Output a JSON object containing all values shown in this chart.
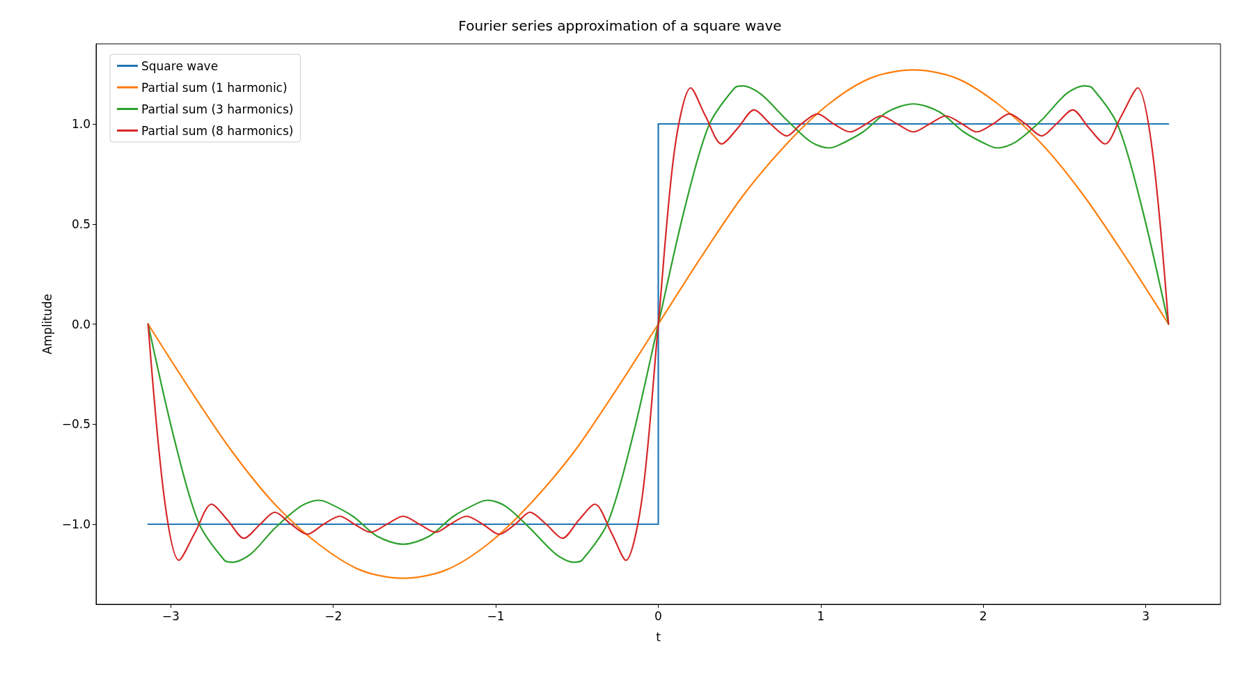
{
  "chart_data": {
    "type": "line",
    "title": "Fourier series approximation of a square wave",
    "xlabel": "t",
    "ylabel": "Amplitude",
    "xlim": [
      -3.46,
      3.46
    ],
    "xticks": [
      {
        "value": -3,
        "label": "−3"
      },
      {
        "value": -2,
        "label": "−2"
      },
      {
        "value": -1,
        "label": "−1"
      },
      0,
      1,
      2,
      3
    ],
    "ylim": [
      -1.4,
      1.4
    ],
    "yticks": [
      {
        "value": -1,
        "label": "−1.0"
      },
      {
        "value": -0.5,
        "label": "−0.5"
      },
      {
        "value": 0,
        "label": "0.0"
      },
      {
        "value": 0.5,
        "label": "0.5"
      },
      {
        "value": 1,
        "label": "1.0"
      }
    ],
    "grid": false,
    "legend": "top left",
    "marker": "none",
    "line_style": "solid",
    "series": [
      {
        "name": "Square wave",
        "color": "#1f77b4",
        "x": [
          -3.14,
          0,
          0,
          3.14
        ],
        "values": [
          -1,
          -1,
          1,
          1
        ]
      },
      {
        "name": "Partial sum (1 harmonic)",
        "color": "#ff7f0e",
        "x": [
          -3.14,
          -2.88,
          -2.62,
          -2.36,
          -2.09,
          -1.83,
          -1.57,
          -1.31,
          -1.05,
          -0.79,
          -0.52,
          -0.26,
          0,
          0.26,
          0.52,
          0.79,
          1.05,
          1.31,
          1.57,
          1.83,
          2.09,
          2.36,
          2.62,
          2.88,
          3.14
        ],
        "values": [
          0,
          -0.33,
          -0.64,
          -0.9,
          -1.1,
          -1.23,
          -1.27,
          -1.23,
          -1.1,
          -0.9,
          -0.64,
          -0.33,
          0,
          0.33,
          0.64,
          0.9,
          1.1,
          1.23,
          1.27,
          1.23,
          1.1,
          0.9,
          0.64,
          0.33,
          0
        ]
      },
      {
        "name": "Partial sum (3 harmonics)",
        "color": "#2ca02c",
        "x": [
          -3.14,
          -2.98,
          -2.83,
          -2.67,
          -2.62,
          -2.51,
          -2.36,
          -2.2,
          -2.09,
          -2.04,
          -1.88,
          -1.73,
          -1.57,
          -1.41,
          -1.26,
          -1.1,
          -1.05,
          -0.94,
          -0.79,
          -0.63,
          -0.52,
          -0.47,
          -0.31,
          -0.16,
          0,
          0.16,
          0.31,
          0.47,
          0.52,
          0.63,
          0.79,
          0.94,
          1.05,
          1.1,
          1.26,
          1.41,
          1.57,
          1.73,
          1.88,
          2.04,
          2.09,
          2.2,
          2.36,
          2.51,
          2.62,
          2.67,
          2.83,
          2.98,
          3.14
        ],
        "values": [
          0,
          -0.57,
          -0.99,
          -1.18,
          -1.19,
          -1.15,
          -1.02,
          -0.91,
          -0.88,
          -0.89,
          -0.96,
          -1.06,
          -1.1,
          -1.06,
          -0.96,
          -0.89,
          -0.88,
          -0.91,
          -1.02,
          -1.15,
          -1.19,
          -1.18,
          -0.99,
          -0.57,
          0,
          0.57,
          0.99,
          1.18,
          1.19,
          1.15,
          1.02,
          0.91,
          0.88,
          0.89,
          0.96,
          1.06,
          1.1,
          1.06,
          0.96,
          0.89,
          0.88,
          0.91,
          1.02,
          1.15,
          1.19,
          1.18,
          0.99,
          0.57,
          0
        ]
      },
      {
        "name": "Partial sum (8 harmonics)",
        "color": "#d62728",
        "x": [
          -3.14,
          -3.04,
          -2.95,
          -2.85,
          -2.75,
          -2.65,
          -2.55,
          -2.45,
          -2.36,
          -2.26,
          -2.16,
          -2.06,
          -1.96,
          -1.87,
          -1.77,
          -1.67,
          -1.57,
          -1.47,
          -1.37,
          -1.28,
          -1.18,
          -1.08,
          -0.98,
          -0.88,
          -0.79,
          -0.69,
          -0.59,
          -0.49,
          -0.39,
          -0.29,
          -0.2,
          -0.1,
          0,
          0.1,
          0.2,
          0.29,
          0.39,
          0.49,
          0.59,
          0.69,
          0.79,
          0.88,
          0.98,
          1.08,
          1.18,
          1.28,
          1.37,
          1.47,
          1.57,
          1.67,
          1.77,
          1.87,
          1.96,
          2.06,
          2.16,
          2.26,
          2.36,
          2.45,
          2.55,
          2.65,
          2.75,
          2.85,
          2.95,
          3.04,
          3.14
        ],
        "values": [
          0,
          -0.87,
          -1.18,
          -1.04,
          -0.9,
          -0.98,
          -1.07,
          -1,
          -0.94,
          -1,
          -1.05,
          -1,
          -0.96,
          -1,
          -1.04,
          -1,
          -0.96,
          -1,
          -1.04,
          -1,
          -0.96,
          -1,
          -1.05,
          -1,
          -0.94,
          -1,
          -1.07,
          -0.98,
          -0.9,
          -1.04,
          -1.18,
          -0.87,
          0,
          0.87,
          1.18,
          1.04,
          0.9,
          0.98,
          1.07,
          1,
          0.94,
          1,
          1.05,
          1,
          0.96,
          1,
          1.04,
          1,
          0.96,
          1,
          1.04,
          1,
          0.96,
          1,
          1.05,
          1,
          0.94,
          1,
          1.07,
          0.98,
          0.9,
          1.04,
          1.18,
          0.87,
          0
        ]
      }
    ]
  }
}
